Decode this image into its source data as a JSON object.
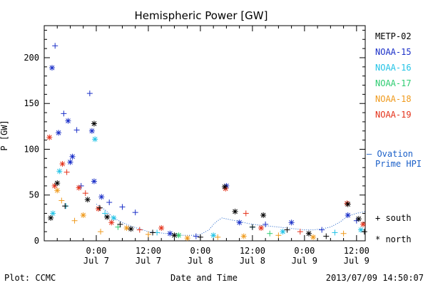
{
  "chart_data": {
    "type": "scatter",
    "title": "Hemispheric Power [GW]",
    "ylabel": "P [GW]",
    "xlabel": "Date and Time",
    "ylim": [
      0,
      235
    ],
    "yticks": [
      0,
      50,
      100,
      150,
      200
    ],
    "xlim": [
      -12,
      62
    ],
    "x_unit": "hours since 2013-07-07 00:00 UT",
    "x_ticks": [
      {
        "x": 0,
        "time": "0:00",
        "date": "Jul 7"
      },
      {
        "x": 12,
        "time": "12:00",
        "date": "Jul 7"
      },
      {
        "x": 24,
        "time": "0:00",
        "date": "Jul 8"
      },
      {
        "x": 36,
        "time": "12:00",
        "date": "Jul 8"
      },
      {
        "x": 48,
        "time": "0:00",
        "date": "Jul 9"
      },
      {
        "x": 60,
        "time": "12:00",
        "date": "Jul 9"
      }
    ],
    "legend_placement": "right",
    "series": [
      {
        "name": "METP-02",
        "color": "#000000"
      },
      {
        "name": "NOAA-15",
        "color": "#1a2fc8"
      },
      {
        "name": "NOAA-16",
        "color": "#22c3e6"
      },
      {
        "name": "NOAA-17",
        "color": "#2ecc71"
      },
      {
        "name": "NOAA-18",
        "color": "#ef9a1c"
      },
      {
        "name": "NOAA-19",
        "color": "#e4321a"
      }
    ],
    "model_series": {
      "name_line1": "Ovation",
      "name_line2": "Prime HPI",
      "color": "#1a5fc8"
    },
    "marker_legend": [
      {
        "marker": "+",
        "label": "south"
      },
      {
        "marker": "*",
        "label": "north"
      }
    ],
    "points": [
      {
        "series": "NOAA-15",
        "x": -10.2,
        "y": 189,
        "m": "*"
      },
      {
        "series": "NOAA-15",
        "x": -9.5,
        "y": 213,
        "m": "+"
      },
      {
        "series": "NOAA-15",
        "x": -7.5,
        "y": 139,
        "m": "+"
      },
      {
        "series": "NOAA-15",
        "x": -6.5,
        "y": 131,
        "m": "*"
      },
      {
        "series": "NOAA-15",
        "x": -8.7,
        "y": 118,
        "m": "*"
      },
      {
        "series": "NOAA-15",
        "x": -4.5,
        "y": 121,
        "m": "+"
      },
      {
        "series": "NOAA-15",
        "x": -1.5,
        "y": 161,
        "m": "+"
      },
      {
        "series": "NOAA-15",
        "x": -1,
        "y": 120,
        "m": "*"
      },
      {
        "series": "NOAA-15",
        "x": -5.5,
        "y": 92,
        "m": "*"
      },
      {
        "series": "NOAA-15",
        "x": -6,
        "y": 86,
        "m": "*"
      },
      {
        "series": "NOAA-15",
        "x": -3.5,
        "y": 60,
        "m": "+"
      },
      {
        "series": "NOAA-15",
        "x": -0.5,
        "y": 65,
        "m": "*"
      },
      {
        "series": "NOAA-15",
        "x": 1.2,
        "y": 48,
        "m": "*"
      },
      {
        "series": "NOAA-15",
        "x": 3,
        "y": 42,
        "m": "+"
      },
      {
        "series": "NOAA-15",
        "x": 6,
        "y": 37,
        "m": "+"
      },
      {
        "series": "NOAA-15",
        "x": 9,
        "y": 31,
        "m": "+"
      },
      {
        "series": "NOAA-15",
        "x": 17,
        "y": 8,
        "m": "*"
      },
      {
        "series": "NOAA-15",
        "x": 23,
        "y": 5,
        "m": "+"
      },
      {
        "series": "NOAA-15",
        "x": 30,
        "y": 60,
        "m": "*"
      },
      {
        "series": "NOAA-15",
        "x": 33,
        "y": 20,
        "m": "*"
      },
      {
        "series": "NOAA-15",
        "x": 39,
        "y": 18,
        "m": "+"
      },
      {
        "series": "NOAA-15",
        "x": 45,
        "y": 20,
        "m": "*"
      },
      {
        "series": "NOAA-15",
        "x": 52,
        "y": 12,
        "m": "+"
      },
      {
        "series": "NOAA-15",
        "x": 58,
        "y": 28,
        "m": "*"
      },
      {
        "series": "NOAA-15",
        "x": 60,
        "y": 22,
        "m": "+"
      },
      {
        "series": "NOAA-16",
        "x": -10,
        "y": 30,
        "m": "*"
      },
      {
        "series": "NOAA-16",
        "x": -8.5,
        "y": 76,
        "m": "*"
      },
      {
        "series": "NOAA-16",
        "x": -7,
        "y": 38,
        "m": "+"
      },
      {
        "series": "NOAA-16",
        "x": -0.3,
        "y": 111,
        "m": "*"
      },
      {
        "series": "NOAA-16",
        "x": 2,
        "y": 30,
        "m": "+"
      },
      {
        "series": "NOAA-16",
        "x": 4,
        "y": 25,
        "m": "*"
      },
      {
        "series": "NOAA-16",
        "x": 14,
        "y": 9,
        "m": "+"
      },
      {
        "series": "NOAA-16",
        "x": 27,
        "y": 6,
        "m": "*"
      },
      {
        "series": "NOAA-16",
        "x": 36,
        "y": 15,
        "m": "+"
      },
      {
        "series": "NOAA-16",
        "x": 43,
        "y": 10,
        "m": "*"
      },
      {
        "series": "NOAA-16",
        "x": 55,
        "y": 9,
        "m": "+"
      },
      {
        "series": "NOAA-16",
        "x": 61,
        "y": 12,
        "m": "*"
      },
      {
        "series": "NOAA-17",
        "x": 5,
        "y": 15,
        "m": "+"
      },
      {
        "series": "NOAA-17",
        "x": 19,
        "y": 6,
        "m": "*"
      },
      {
        "series": "NOAA-17",
        "x": 40,
        "y": 8,
        "m": "+"
      },
      {
        "series": "NOAA-18",
        "x": -9,
        "y": 55,
        "m": "*"
      },
      {
        "series": "NOAA-18",
        "x": -8,
        "y": 44,
        "m": "+"
      },
      {
        "series": "NOAA-18",
        "x": -5,
        "y": 22,
        "m": "+"
      },
      {
        "series": "NOAA-18",
        "x": -3,
        "y": 28,
        "m": "*"
      },
      {
        "series": "NOAA-18",
        "x": 1,
        "y": 10,
        "m": "+"
      },
      {
        "series": "NOAA-18",
        "x": 7,
        "y": 14,
        "m": "*"
      },
      {
        "series": "NOAA-18",
        "x": 12,
        "y": 7,
        "m": "+"
      },
      {
        "series": "NOAA-18",
        "x": 21,
        "y": 3,
        "m": "*"
      },
      {
        "series": "NOAA-18",
        "x": 28,
        "y": 4,
        "m": "+"
      },
      {
        "series": "NOAA-18",
        "x": 34,
        "y": 5,
        "m": "*"
      },
      {
        "series": "NOAA-18",
        "x": 42,
        "y": 6,
        "m": "+"
      },
      {
        "series": "NOAA-18",
        "x": 50,
        "y": 4,
        "m": "*"
      },
      {
        "series": "NOAA-18",
        "x": 57,
        "y": 8,
        "m": "+"
      },
      {
        "series": "NOAA-19",
        "x": -10.8,
        "y": 113,
        "m": "*"
      },
      {
        "series": "NOAA-19",
        "x": -7.8,
        "y": 84,
        "m": "*"
      },
      {
        "series": "NOAA-19",
        "x": -6.8,
        "y": 75,
        "m": "+"
      },
      {
        "series": "NOAA-19",
        "x": -9.6,
        "y": 60,
        "m": "*"
      },
      {
        "series": "NOAA-19",
        "x": -4,
        "y": 58,
        "m": "*"
      },
      {
        "series": "NOAA-19",
        "x": -2.5,
        "y": 52,
        "m": "+"
      },
      {
        "series": "NOAA-19",
        "x": 0.5,
        "y": 35,
        "m": "*"
      },
      {
        "series": "NOAA-19",
        "x": 3.5,
        "y": 20,
        "m": "*"
      },
      {
        "series": "NOAA-19",
        "x": 10,
        "y": 12,
        "m": "+"
      },
      {
        "series": "NOAA-19",
        "x": 15,
        "y": 14,
        "m": "*"
      },
      {
        "series": "NOAA-19",
        "x": 29.8,
        "y": 57,
        "m": "*"
      },
      {
        "series": "NOAA-19",
        "x": 34.5,
        "y": 30,
        "m": "+"
      },
      {
        "series": "NOAA-19",
        "x": 38,
        "y": 14,
        "m": "*"
      },
      {
        "series": "NOAA-19",
        "x": 47,
        "y": 10,
        "m": "+"
      },
      {
        "series": "NOAA-19",
        "x": 57.8,
        "y": 41,
        "m": "*"
      },
      {
        "series": "NOAA-19",
        "x": 61.5,
        "y": 18,
        "m": "*"
      },
      {
        "series": "METP-02",
        "x": -10.5,
        "y": 25,
        "m": "*"
      },
      {
        "series": "METP-02",
        "x": -9,
        "y": 63,
        "m": "*"
      },
      {
        "series": "METP-02",
        "x": -7.2,
        "y": 38,
        "m": "+"
      },
      {
        "series": "METP-02",
        "x": -2,
        "y": 45,
        "m": "*"
      },
      {
        "series": "METP-02",
        "x": -0.5,
        "y": 128,
        "m": "*"
      },
      {
        "series": "METP-02",
        "x": 0.8,
        "y": 36,
        "m": "+"
      },
      {
        "series": "METP-02",
        "x": 2.5,
        "y": 26,
        "m": "*"
      },
      {
        "series": "METP-02",
        "x": 5.5,
        "y": 18,
        "m": "+"
      },
      {
        "series": "METP-02",
        "x": 8,
        "y": 13,
        "m": "*"
      },
      {
        "series": "METP-02",
        "x": 13,
        "y": 9,
        "m": "+"
      },
      {
        "series": "METP-02",
        "x": 18,
        "y": 6,
        "m": "*"
      },
      {
        "series": "METP-02",
        "x": 24,
        "y": 4,
        "m": "+"
      },
      {
        "series": "METP-02",
        "x": 29.6,
        "y": 59,
        "m": "*"
      },
      {
        "series": "METP-02",
        "x": 32,
        "y": 32,
        "m": "*"
      },
      {
        "series": "METP-02",
        "x": 36,
        "y": 15,
        "m": "+"
      },
      {
        "series": "METP-02",
        "x": 38.5,
        "y": 28,
        "m": "*"
      },
      {
        "series": "METP-02",
        "x": 44,
        "y": 12,
        "m": "+"
      },
      {
        "series": "METP-02",
        "x": 49,
        "y": 8,
        "m": "*"
      },
      {
        "series": "METP-02",
        "x": 53,
        "y": 5,
        "m": "+"
      },
      {
        "series": "METP-02",
        "x": 58,
        "y": 40,
        "m": "*"
      },
      {
        "series": "METP-02",
        "x": 60.5,
        "y": 24,
        "m": "*"
      },
      {
        "series": "METP-02",
        "x": 61.8,
        "y": 10,
        "m": "+"
      }
    ],
    "model_line": [
      {
        "x": 0,
        "y": 40
      },
      {
        "x": 2,
        "y": 34
      },
      {
        "x": 4,
        "y": 25
      },
      {
        "x": 6,
        "y": 20
      },
      {
        "x": 8,
        "y": 16
      },
      {
        "x": 10,
        "y": 13
      },
      {
        "x": 12,
        "y": 10
      },
      {
        "x": 14,
        "y": 9
      },
      {
        "x": 16,
        "y": 8
      },
      {
        "x": 18,
        "y": 7
      },
      {
        "x": 20,
        "y": 6
      },
      {
        "x": 22,
        "y": 6
      },
      {
        "x": 24,
        "y": 7
      },
      {
        "x": 26,
        "y": 12
      },
      {
        "x": 27,
        "y": 18
      },
      {
        "x": 28,
        "y": 22
      },
      {
        "x": 29,
        "y": 25
      },
      {
        "x": 30,
        "y": 24
      },
      {
        "x": 32,
        "y": 22
      },
      {
        "x": 34,
        "y": 20
      },
      {
        "x": 36,
        "y": 18
      },
      {
        "x": 38,
        "y": 17
      },
      {
        "x": 40,
        "y": 16
      },
      {
        "x": 42,
        "y": 15
      },
      {
        "x": 44,
        "y": 14
      },
      {
        "x": 46,
        "y": 13
      },
      {
        "x": 48,
        "y": 12
      },
      {
        "x": 50,
        "y": 12
      },
      {
        "x": 52,
        "y": 13
      },
      {
        "x": 54,
        "y": 15
      },
      {
        "x": 56,
        "y": 20
      },
      {
        "x": 58,
        "y": 27
      },
      {
        "x": 60,
        "y": 30
      },
      {
        "x": 62,
        "y": 32
      }
    ]
  },
  "footer": {
    "plot_credit": "Plot: CCMC",
    "timestamp": "2013/07/09 14:50:07"
  }
}
